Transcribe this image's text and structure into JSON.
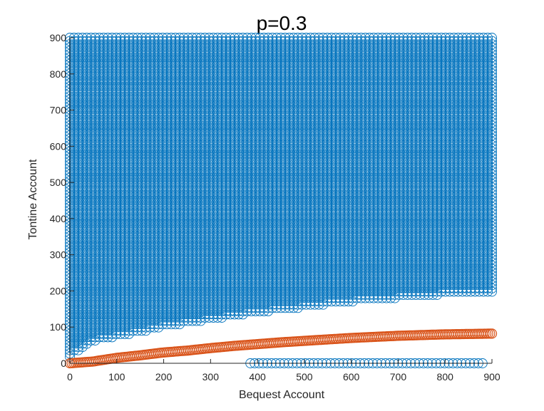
{
  "chart_data": {
    "type": "scatter",
    "title": "p=0.3",
    "xlabel": "Bequest Account",
    "ylabel": "Tontine Account",
    "xlim": [
      0,
      900
    ],
    "ylim": [
      0,
      900
    ],
    "xticks": [
      "0",
      "100",
      "200",
      "300",
      "400",
      "500",
      "600",
      "700",
      "800",
      "900"
    ],
    "yticks": [
      "0",
      "100",
      "200",
      "300",
      "400",
      "500",
      "600",
      "700",
      "800",
      "900"
    ],
    "grid": false,
    "marker": "open-circle",
    "colors": {
      "series_1": "#0072BD",
      "series_2": "#D95319"
    },
    "series": [
      {
        "description_of_region": "dense grid of open circles filling the region above the lower boundary, up to 900",
        "x_step": 9,
        "y_step": 9,
        "x_range": [
          0,
          900
        ],
        "y_max": 900,
        "lower_boundary": [
          {
            "x": 0,
            "y": 10
          },
          {
            "x": 10,
            "y": 30
          },
          {
            "x": 50,
            "y": 60
          },
          {
            "x": 100,
            "y": 75
          },
          {
            "x": 150,
            "y": 85
          },
          {
            "x": 200,
            "y": 100
          },
          {
            "x": 300,
            "y": 120
          },
          {
            "x": 400,
            "y": 140
          },
          {
            "x": 500,
            "y": 155
          },
          {
            "x": 600,
            "y": 170
          },
          {
            "x": 700,
            "y": 180
          },
          {
            "x": 800,
            "y": 190
          },
          {
            "x": 900,
            "y": 195
          }
        ],
        "extra_points": {
          "y": 0,
          "x_range": [
            385,
            885
          ]
        }
      },
      {
        "points": [
          {
            "x": 0,
            "y": 0
          },
          {
            "x": 50,
            "y": 5
          },
          {
            "x": 100,
            "y": 15
          },
          {
            "x": 150,
            "y": 22
          },
          {
            "x": 200,
            "y": 30
          },
          {
            "x": 250,
            "y": 35
          },
          {
            "x": 300,
            "y": 42
          },
          {
            "x": 350,
            "y": 48
          },
          {
            "x": 400,
            "y": 53
          },
          {
            "x": 450,
            "y": 58
          },
          {
            "x": 500,
            "y": 62
          },
          {
            "x": 550,
            "y": 66
          },
          {
            "x": 600,
            "y": 70
          },
          {
            "x": 650,
            "y": 73
          },
          {
            "x": 700,
            "y": 76
          },
          {
            "x": 750,
            "y": 78
          },
          {
            "x": 800,
            "y": 80
          },
          {
            "x": 850,
            "y": 81
          },
          {
            "x": 900,
            "y": 82
          }
        ]
      }
    ]
  }
}
